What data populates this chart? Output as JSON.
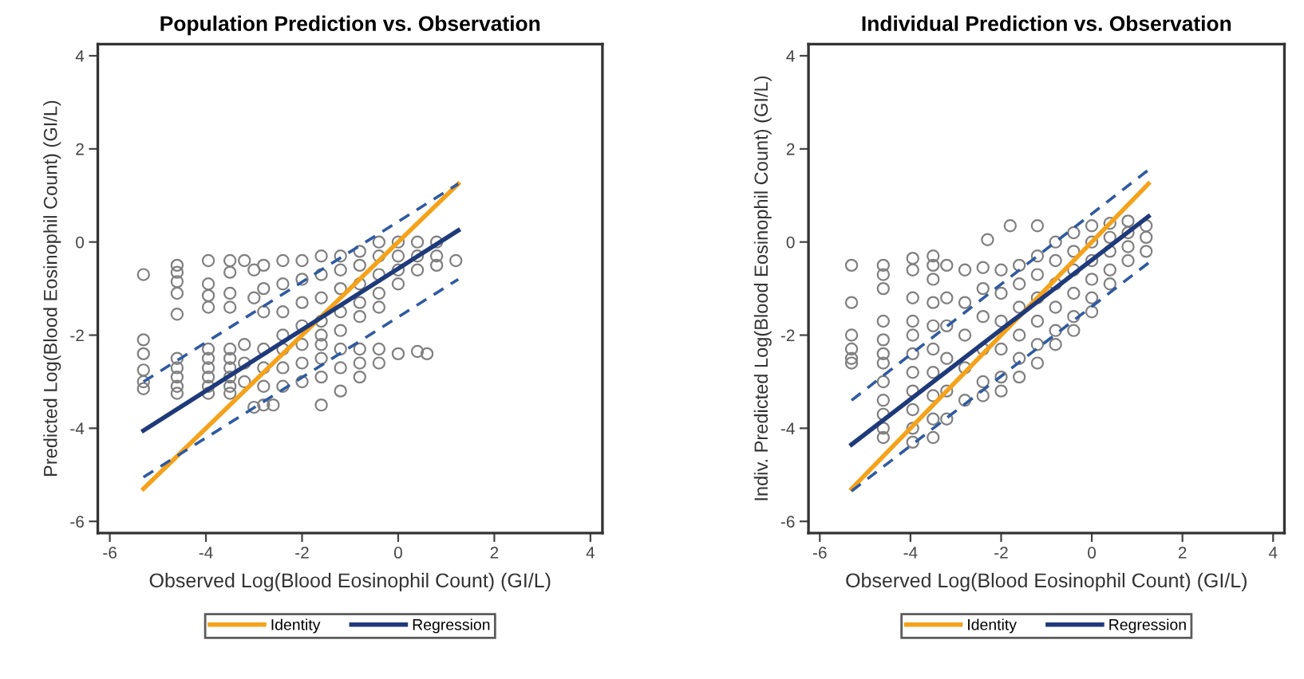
{
  "chart_data": [
    {
      "type": "scatter",
      "title": "Population Prediction vs. Observation",
      "xlabel": "Observed Log(Blood Eosinophil Count) (GI/L)",
      "ylabel": "Predicted Log(Blood Eosinophil Count) (GI/L)",
      "xlim": [
        -6.25,
        4.25
      ],
      "ylim": [
        -6.25,
        4.25
      ],
      "xticks": [
        -6,
        -4,
        -2,
        0,
        2,
        4
      ],
      "yticks": [
        -6,
        -4,
        -2,
        0,
        2,
        4
      ],
      "grid": false,
      "legend": "bottom",
      "series": [
        {
          "type": "scatter",
          "marker": "circle",
          "color": "#808080",
          "x": [
            -5.3,
            -5.3,
            -5.3,
            -5.3,
            -5.3,
            -5.3,
            -4.6,
            -4.6,
            -4.6,
            -4.6,
            -4.6,
            -4.6,
            -4.6,
            -4.6,
            -4.6,
            -4.6,
            -3.95,
            -3.95,
            -3.95,
            -3.95,
            -3.95,
            -3.95,
            -3.95,
            -3.95,
            -3.95,
            -3.95,
            -3.5,
            -3.5,
            -3.5,
            -3.5,
            -3.5,
            -3.5,
            -3.5,
            -3.5,
            -3.5,
            -3.5,
            -3.2,
            -3.0,
            -3.0,
            -3.0,
            -2.8,
            -2.6,
            -2.8,
            -2.8,
            -2.8,
            -2.4,
            -2.4,
            -2.4,
            -2.4,
            -2.0,
            -2.0,
            -2.0,
            -2.0,
            -1.6,
            -1.6,
            -1.6,
            -1.6,
            -1.6,
            -1.2,
            -1.2,
            -1.2,
            -1.2,
            -1.2,
            -0.8,
            -0.8,
            -0.8,
            -0.8,
            -0.8,
            -0.4,
            -0.4,
            -0.4,
            -0.4,
            -0.4,
            0.0,
            0.0,
            0.0,
            0.0,
            0.4,
            0.4,
            0.4,
            0.8,
            0.8,
            0.8,
            1.2,
            -3.2,
            -3.2,
            -3.2,
            -2.8,
            -2.8,
            -2.8,
            -2.4,
            -2.4,
            -2.4,
            -2.0,
            -2.0,
            -2.0,
            -1.6,
            -1.6,
            -1.6,
            -1.6,
            -1.2,
            -1.2,
            -1.2,
            -0.8,
            -0.8,
            -0.8,
            -0.4,
            -0.4,
            0.0,
            0.4,
            0.6
          ],
          "values": [
            -0.7,
            -2.1,
            -2.4,
            -2.75,
            -3.0,
            -3.15,
            -0.5,
            -0.65,
            -0.85,
            -1.1,
            -1.55,
            -2.5,
            -2.7,
            -2.9,
            -3.1,
            -3.25,
            -0.4,
            -0.9,
            -1.15,
            -1.4,
            -2.3,
            -2.5,
            -2.7,
            -2.9,
            -3.1,
            -3.25,
            -0.4,
            -0.65,
            -1.1,
            -1.4,
            -2.3,
            -2.5,
            -2.7,
            -2.9,
            -3.1,
            -3.25,
            -0.4,
            -0.6,
            -1.2,
            -3.55,
            -3.5,
            -3.5,
            -0.5,
            -1.0,
            -1.5,
            -0.4,
            -0.9,
            -1.5,
            -2.0,
            -0.4,
            -0.8,
            -1.3,
            -1.8,
            -0.3,
            -0.7,
            -1.2,
            -1.7,
            -2.0,
            -0.3,
            -0.6,
            -1.0,
            -1.5,
            -1.9,
            -0.2,
            -0.5,
            -0.9,
            -1.3,
            -1.6,
            0.0,
            -0.3,
            -0.7,
            -1.1,
            -1.4,
            0.0,
            -0.3,
            -0.6,
            -0.9,
            0.0,
            -0.3,
            -0.6,
            0.0,
            -0.3,
            -0.5,
            -0.4,
            -2.2,
            -2.6,
            -3.0,
            -2.3,
            -2.7,
            -3.1,
            -2.3,
            -2.7,
            -3.1,
            -2.2,
            -2.6,
            -3.0,
            -2.2,
            -2.5,
            -2.9,
            -3.5,
            -2.3,
            -2.7,
            -3.2,
            -2.3,
            -2.6,
            -2.9,
            -2.3,
            -2.6,
            -2.4,
            -2.35,
            -2.4
          ]
        },
        {
          "type": "line",
          "name": "Identity",
          "color": "#f5a21b",
          "x": [
            -5.3,
            1.25
          ],
          "values": [
            -5.3,
            1.25
          ],
          "line_style": "solid"
        },
        {
          "type": "line",
          "name": "Regression",
          "color": "#1f3a7a",
          "x": [
            -5.3,
            1.25
          ],
          "values": [
            -4.05,
            0.25
          ],
          "line_style": "solid"
        },
        {
          "type": "line",
          "color": "#2f5aa0",
          "x": [
            -5.3,
            1.25
          ],
          "values": [
            -3.0,
            1.25
          ],
          "line_style": "dashed"
        },
        {
          "type": "line",
          "color": "#2f5aa0",
          "x": [
            -5.3,
            1.25
          ],
          "values": [
            -5.05,
            -0.8
          ],
          "line_style": "dashed"
        }
      ]
    },
    {
      "type": "scatter",
      "title": "Individual Prediction vs. Observation",
      "xlabel": "Observed Log(Blood Eosinophil Count) (GI/L)",
      "ylabel": "Indiv. Predicted Log(Blood Eosinophil Count) (GI/L)",
      "xlim": [
        -6.25,
        4.25
      ],
      "ylim": [
        -6.25,
        4.25
      ],
      "xticks": [
        -6,
        -4,
        -2,
        0,
        2,
        4
      ],
      "yticks": [
        -6,
        -4,
        -2,
        0,
        2,
        4
      ],
      "grid": false,
      "legend": "bottom",
      "series": [
        {
          "type": "scatter",
          "marker": "circle",
          "color": "#808080",
          "x": [
            -5.3,
            -5.3,
            -5.3,
            -5.3,
            -5.3,
            -5.3,
            -4.6,
            -4.6,
            -4.6,
            -4.6,
            -4.6,
            -4.6,
            -4.6,
            -4.6,
            -4.6,
            -4.6,
            -4.6,
            -4.6,
            -3.95,
            -3.95,
            -3.95,
            -3.95,
            -3.95,
            -3.95,
            -3.95,
            -3.95,
            -3.95,
            -3.95,
            -3.95,
            -3.5,
            -3.5,
            -3.5,
            -3.5,
            -3.5,
            -3.5,
            -3.5,
            -3.5,
            -3.5,
            -3.5,
            -3.2,
            -3.2,
            -3.2,
            -3.2,
            -3.2,
            -3.2,
            -2.8,
            -2.8,
            -2.8,
            -2.8,
            -2.8,
            -2.4,
            -2.4,
            -2.4,
            -2.4,
            -2.4,
            -2.4,
            -2.0,
            -2.0,
            -2.0,
            -2.0,
            -2.0,
            -2.0,
            -1.6,
            -1.6,
            -1.6,
            -1.6,
            -1.6,
            -1.6,
            -1.2,
            -1.2,
            -1.2,
            -1.2,
            -1.2,
            -1.2,
            -0.8,
            -0.8,
            -0.8,
            -0.8,
            -0.8,
            -0.8,
            -0.4,
            -0.4,
            -0.4,
            -0.4,
            -0.4,
            -0.4,
            0.0,
            0.0,
            0.0,
            0.0,
            0.0,
            0.0,
            0.4,
            0.4,
            0.4,
            0.4,
            0.4,
            0.8,
            0.8,
            0.8,
            0.8,
            1.2,
            1.2,
            1.2,
            -2.3,
            -1.8,
            -1.2
          ],
          "values": [
            -0.5,
            -1.3,
            -2.0,
            -2.3,
            -2.5,
            -2.6,
            -0.5,
            -0.7,
            -1.0,
            -1.7,
            -2.1,
            -2.4,
            -2.6,
            -3.0,
            -3.4,
            -3.7,
            -4.0,
            -4.2,
            -0.35,
            -0.6,
            -1.2,
            -1.7,
            -2.0,
            -2.4,
            -2.8,
            -3.2,
            -3.6,
            -4.0,
            -4.3,
            -0.3,
            -0.5,
            -0.8,
            -1.3,
            -1.8,
            -2.3,
            -2.8,
            -3.3,
            -3.8,
            -4.2,
            -0.5,
            -1.2,
            -1.8,
            -2.5,
            -3.2,
            -3.8,
            -0.6,
            -1.3,
            -2.0,
            -2.7,
            -3.4,
            -0.55,
            -1.0,
            -1.6,
            -2.3,
            -3.0,
            -3.3,
            -0.6,
            -1.1,
            -1.7,
            -2.3,
            -2.9,
            -3.2,
            -0.5,
            -0.9,
            -1.4,
            -2.0,
            -2.5,
            -2.9,
            -0.3,
            -0.7,
            -1.2,
            -1.7,
            -2.2,
            -2.6,
            0.0,
            -0.4,
            -0.9,
            -1.4,
            -1.9,
            -2.2,
            0.2,
            -0.2,
            -0.6,
            -1.1,
            -1.6,
            -1.9,
            0.35,
            0.0,
            -0.4,
            -0.8,
            -1.2,
            -1.5,
            0.4,
            0.1,
            -0.2,
            -0.6,
            -0.9,
            0.45,
            0.2,
            -0.1,
            -0.4,
            0.35,
            0.1,
            -0.2,
            0.05,
            0.35,
            0.35
          ]
        },
        {
          "type": "line",
          "name": "Identity",
          "color": "#f5a21b",
          "x": [
            -5.3,
            1.25
          ],
          "values": [
            -5.3,
            1.25
          ],
          "line_style": "solid"
        },
        {
          "type": "line",
          "name": "Regression",
          "color": "#1f3a7a",
          "x": [
            -5.3,
            1.25
          ],
          "values": [
            -4.35,
            0.55
          ],
          "line_style": "solid"
        },
        {
          "type": "line",
          "color": "#2f5aa0",
          "x": [
            -5.3,
            1.25
          ],
          "values": [
            -3.4,
            1.55
          ],
          "line_style": "dashed"
        },
        {
          "type": "line",
          "color": "#2f5aa0",
          "x": [
            -5.3,
            1.25
          ],
          "values": [
            -5.35,
            -0.45
          ],
          "line_style": "dashed"
        }
      ]
    }
  ]
}
